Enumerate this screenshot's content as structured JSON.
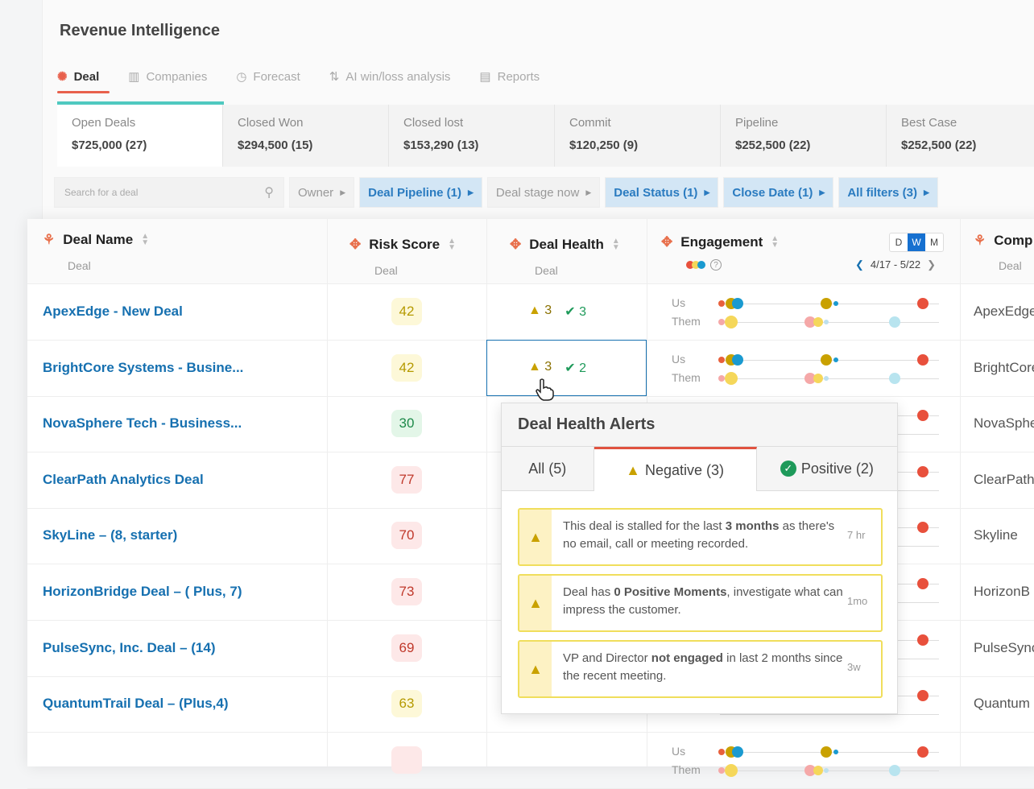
{
  "app": {
    "title": "Revenue Intelligence"
  },
  "tabs": [
    {
      "label": "Deal",
      "icon": "hubspot-icon"
    },
    {
      "label": "Companies",
      "icon": "building-icon"
    },
    {
      "label": "Forecast",
      "icon": "clock-icon"
    },
    {
      "label": "AI win/loss analysis",
      "icon": "sort-icon"
    },
    {
      "label": "Reports",
      "icon": "chart-icon"
    }
  ],
  "cards": [
    {
      "label": "Open Deals",
      "value": "$725,000 (27)"
    },
    {
      "label": "Closed Won",
      "value": "$294,500 (15)"
    },
    {
      "label": "Closed lost",
      "value": "$153,290 (13)"
    },
    {
      "label": "Commit",
      "value": "$120,250 (9)"
    },
    {
      "label": "Pipeline",
      "value": "$252,500 (22)"
    },
    {
      "label": "Best Case",
      "value": "$252,500 (22)"
    }
  ],
  "filters": {
    "search_placeholder": "Search for a deal",
    "chips": [
      {
        "label": "Owner",
        "active": false
      },
      {
        "label": "Deal Pipeline (1)",
        "active": true
      },
      {
        "label": "Deal stage now",
        "active": false
      },
      {
        "label": "Deal Status (1)",
        "active": true
      },
      {
        "label": "Close Date (1)",
        "active": true
      },
      {
        "label": "All filters (3)",
        "active": true
      }
    ]
  },
  "table": {
    "columns": [
      {
        "label": "Deal Name",
        "sub": "Deal"
      },
      {
        "label": "Risk Score",
        "sub": "Deal"
      },
      {
        "label": "Deal Health",
        "sub": "Deal"
      },
      {
        "label": "Engagement",
        "sub": ""
      },
      {
        "label": "Comp",
        "sub": "Deal"
      }
    ],
    "engagement": {
      "range": "4/17 - 5/22",
      "periods": [
        "D",
        "W",
        "M"
      ],
      "selected_period": "W",
      "us_label": "Us",
      "them_label": "Them"
    },
    "rows": [
      {
        "name": "ApexEdge - New Deal",
        "risk": "42",
        "risk_level": "medium",
        "neg": "3",
        "pos": "3",
        "company": "ApexEdge"
      },
      {
        "name": "BrightCore Systems - Busine...",
        "risk": "42",
        "risk_level": "medium",
        "neg": "3",
        "pos": "2",
        "company": "BrightCore"
      },
      {
        "name": "NovaSphere Tech - Business...",
        "risk": "30",
        "risk_level": "low",
        "neg": "",
        "pos": "",
        "company": "NovaSphere"
      },
      {
        "name": "ClearPath Analytics Deal",
        "risk": "77",
        "risk_level": "high",
        "neg": "",
        "pos": "",
        "company": "ClearPath"
      },
      {
        "name": "SkyLine – (8, starter)",
        "risk": "70",
        "risk_level": "high",
        "neg": "",
        "pos": "",
        "company": "Skyline"
      },
      {
        "name": "HorizonBridge Deal – ( Plus, 7)",
        "risk": "73",
        "risk_level": "high",
        "neg": "",
        "pos": "",
        "company": "HorizonB"
      },
      {
        "name": "PulseSync, Inc. Deal – (14)",
        "risk": "69",
        "risk_level": "high",
        "neg": "",
        "pos": "",
        "company": "PulseSync"
      },
      {
        "name": "QuantumTrail Deal – (Plus,4)",
        "risk": "63",
        "risk_level": "medium",
        "neg": "",
        "pos": "",
        "company": "Quantum"
      },
      {
        "name": "",
        "risk": "",
        "risk_level": "high",
        "neg": "",
        "pos": "",
        "company": ""
      }
    ]
  },
  "popover": {
    "title": "Deal Health Alerts",
    "tabs": [
      {
        "label": "All (5)"
      },
      {
        "label": "Negative (3)"
      },
      {
        "label": "Positive (2)"
      }
    ],
    "active_tab": "Negative (3)",
    "alerts": [
      {
        "pre": "This deal is stalled for the last ",
        "bold": "3 months",
        "post": " as there's no email, call or meeting recorded.",
        "time": "7 hr"
      },
      {
        "pre": "Deal has ",
        "bold": "0 Positive Moments",
        "post": ", investigate what can impress the customer.",
        "time": "1mo"
      },
      {
        "pre": "VP and Director ",
        "bold": "not engaged",
        "post": " in last 2 months since the recent meeting.",
        "time": "3w"
      }
    ]
  },
  "colors": {
    "accent": "#1670b0",
    "warning": "#c9a100",
    "positive": "#1e9a5a",
    "risk_high": "#fde8e8",
    "risk_medium": "#fdf8d8",
    "risk_low": "#e3f6e8"
  }
}
